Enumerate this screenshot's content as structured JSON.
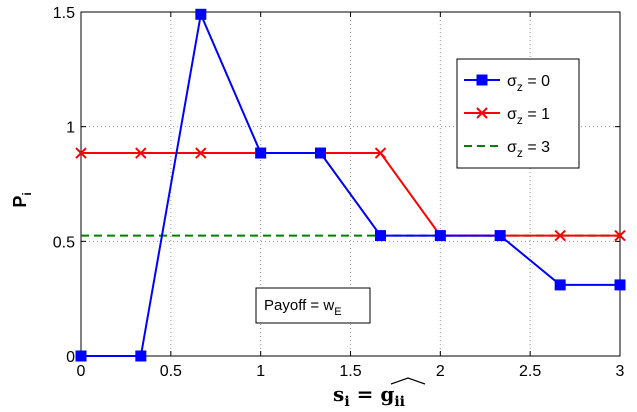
{
  "chart_data": {
    "type": "line",
    "xlabel_base": "s",
    "xlabel_sub": "i",
    "xlabel_rhs_base": "g",
    "xlabel_rhs_sub": "ii",
    "ylabel_base": "P",
    "ylabel_sub": "i",
    "xlim": [
      0,
      3
    ],
    "ylim": [
      0,
      1.5
    ],
    "xticks": [
      "0",
      "0.5",
      "1",
      "1.5",
      "2",
      "2.5",
      "3"
    ],
    "xtick_values": [
      0,
      0.5,
      1,
      1.5,
      2,
      2.5,
      3
    ],
    "yticks": [
      "0",
      "0.5",
      "1",
      "1.5"
    ],
    "ytick_values": [
      0,
      0.5,
      1,
      1.5
    ],
    "grid": true,
    "legend_position": "top-right",
    "annotation": {
      "text_base": "Payoff = w",
      "text_sub": "E",
      "x": 1.2,
      "y": 0.25
    },
    "series": [
      {
        "name_base": "σ",
        "name_sub": "z",
        "name_rest": " = 0",
        "color": "#0000ff",
        "marker": "square",
        "dash": false,
        "x": [
          0,
          0.333,
          0.667,
          1,
          1.333,
          1.667,
          2,
          2.333,
          2.667,
          3
        ],
        "y": [
          0,
          0,
          1.49,
          0.885,
          0.885,
          0.525,
          0.525,
          0.525,
          0.31,
          0.31
        ]
      },
      {
        "name_base": "σ",
        "name_sub": "z",
        "name_rest": " = 1",
        "color": "#ff0000",
        "marker": "x",
        "dash": false,
        "x": [
          0,
          0.333,
          0.667,
          1,
          1.333,
          1.667,
          2,
          2.333,
          2.667,
          3
        ],
        "y": [
          0.885,
          0.885,
          0.885,
          0.885,
          0.885,
          0.885,
          0.525,
          0.525,
          0.525,
          0.525
        ]
      },
      {
        "name_base": "σ",
        "name_sub": "z",
        "name_rest": " = 3",
        "color": "#008000",
        "marker": "none",
        "dash": true,
        "x": [
          0,
          3
        ],
        "y": [
          0.525,
          0.525
        ]
      }
    ]
  }
}
